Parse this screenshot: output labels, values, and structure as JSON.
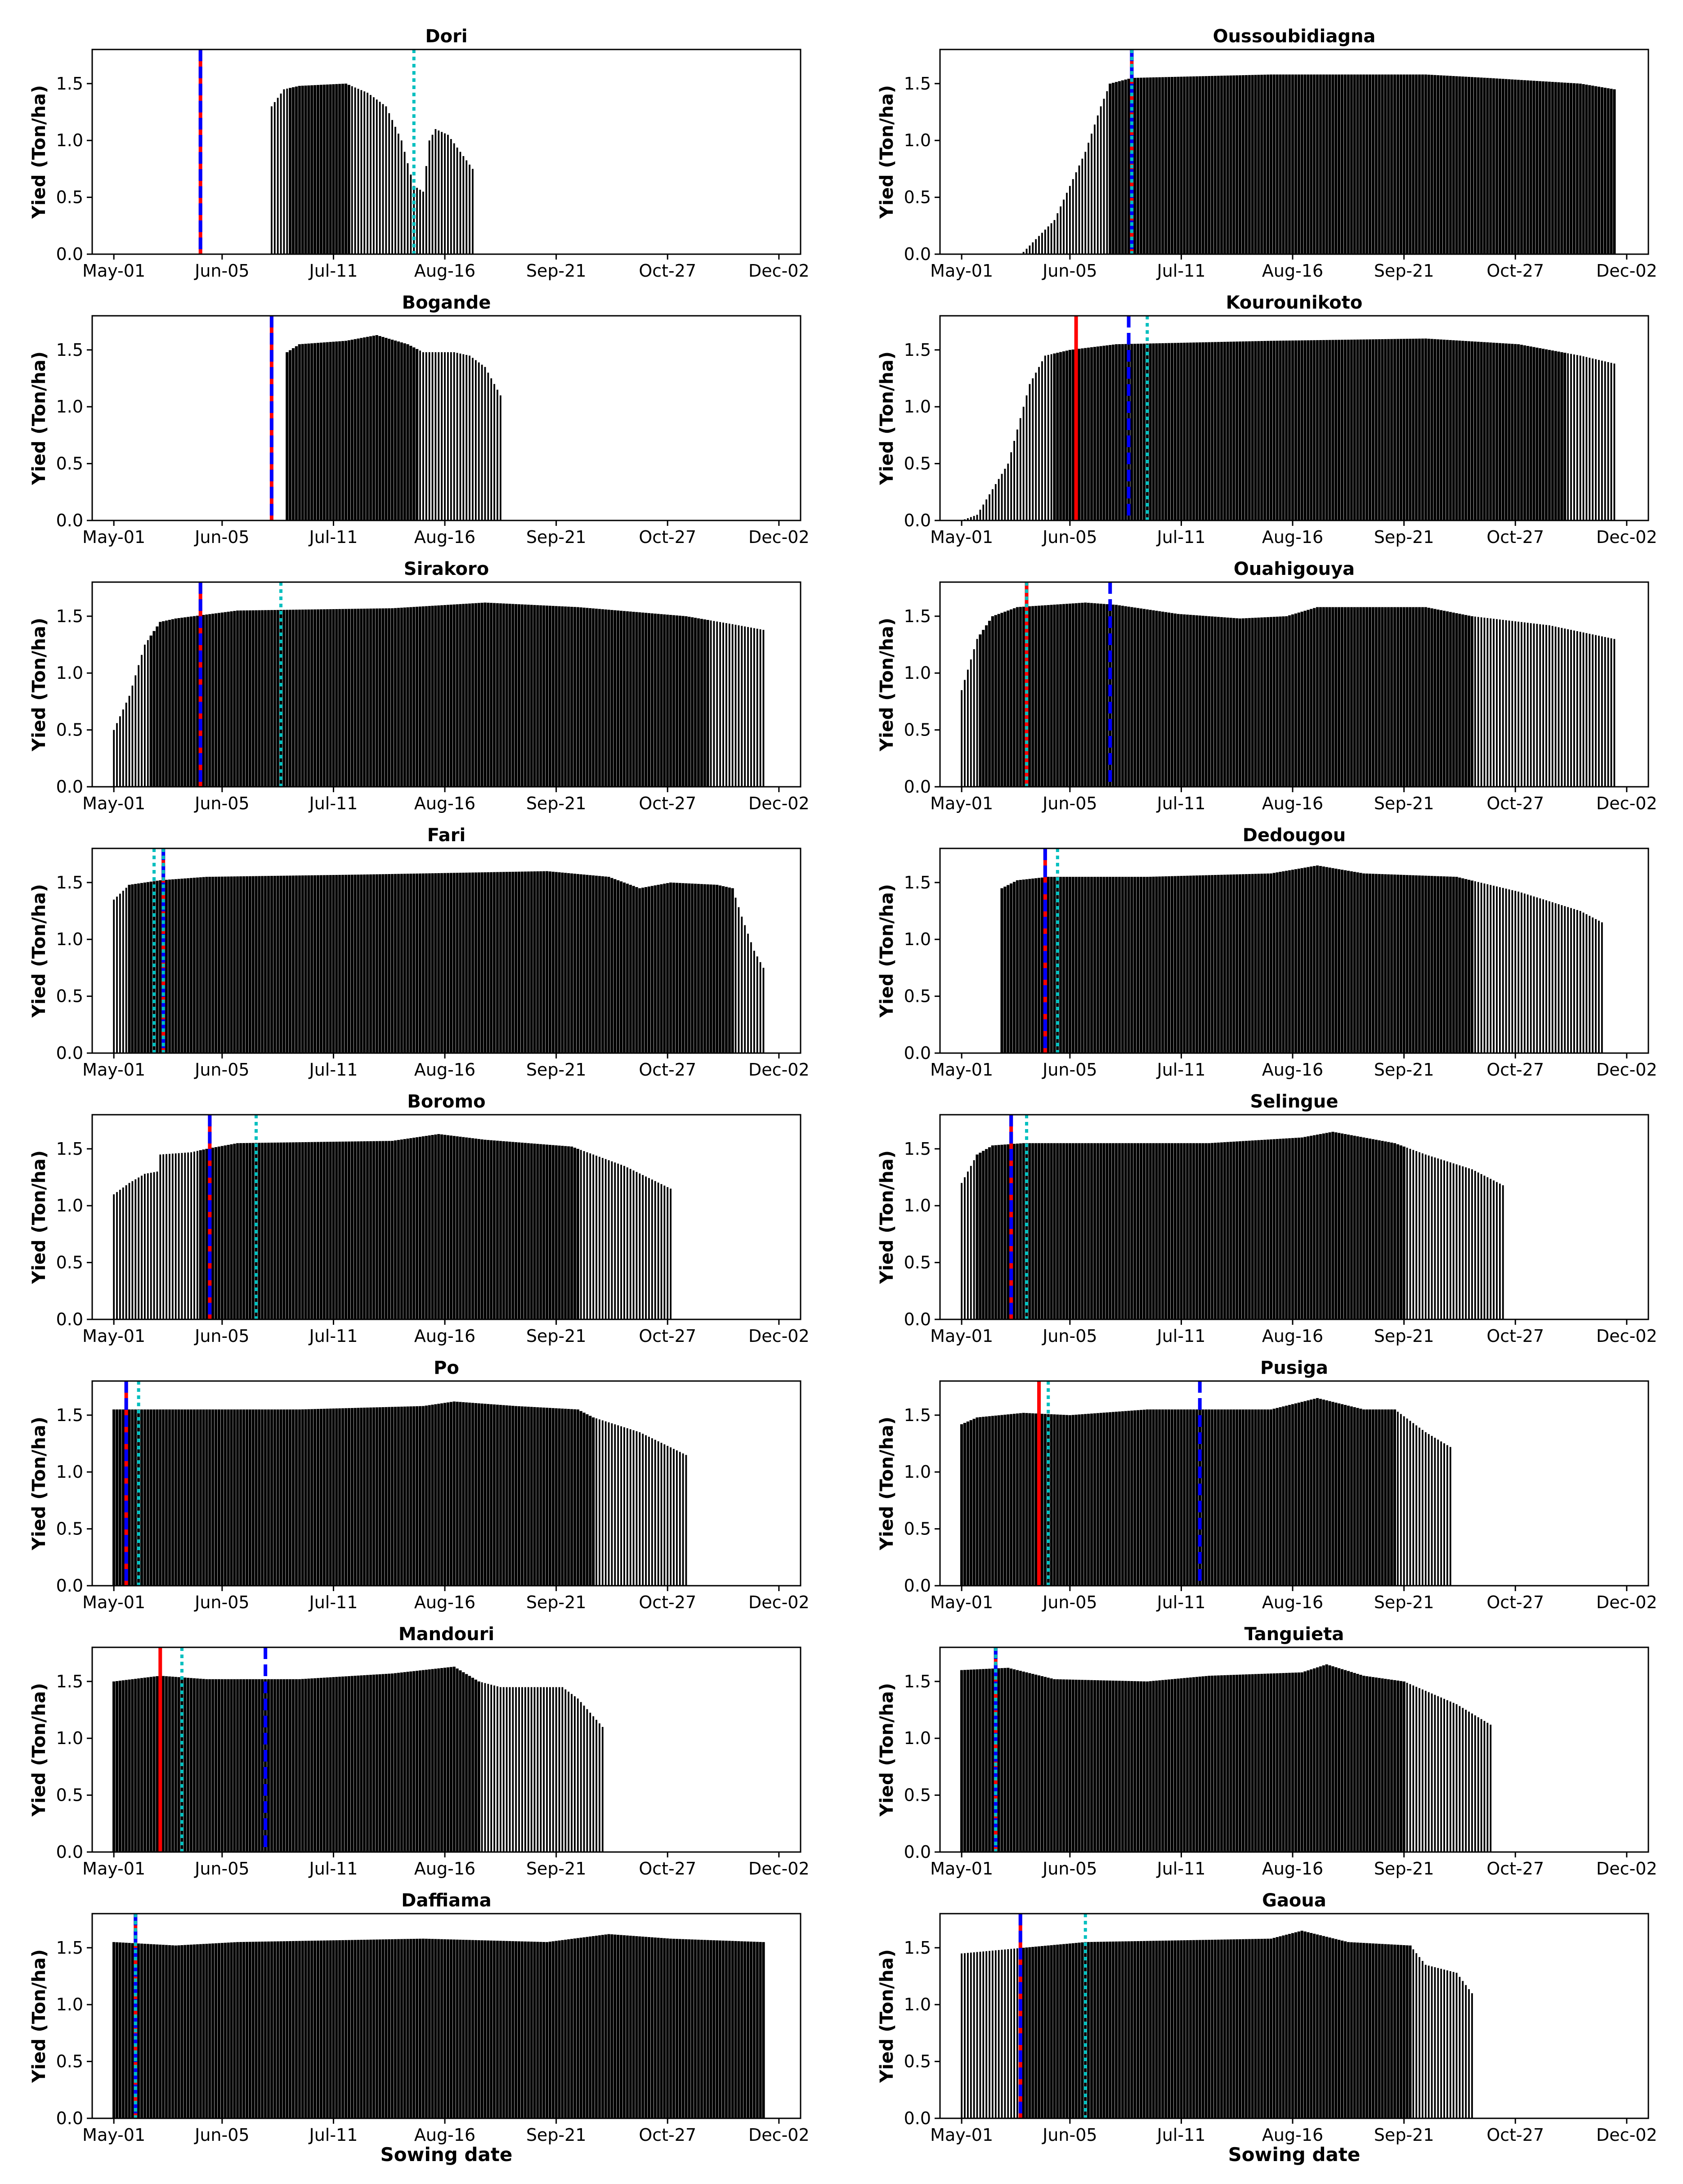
{
  "figure": {
    "xlabel": "Sowing date",
    "ylabel": "Yied (Ton/ha)",
    "x_ticks": [
      "May-01",
      "Jun-05",
      "Jul-11",
      "Aug-16",
      "Sep-21",
      "Oct-27",
      "Dec-02"
    ],
    "y_ticks": [
      "0.0",
      "0.5",
      "1.0",
      "1.5"
    ]
  },
  "colors": {
    "bar": "#000000",
    "line_red": "#ff0000",
    "line_blue": "#0000ff",
    "line_cyan": "#00bfbf"
  },
  "chart_data": [
    {
      "type": "bar",
      "title": "Dori",
      "x_start": "May-01",
      "x_end": "Dec-02",
      "ylim": [
        0,
        1.8
      ],
      "bars_from_day": 51,
      "bars_to_day": 116,
      "dark_from_day": 57,
      "dark_to_day": 76,
      "profile": [
        [
          51,
          1.3
        ],
        [
          55,
          1.45
        ],
        [
          60,
          1.48
        ],
        [
          75,
          1.5
        ],
        [
          82,
          1.42
        ],
        [
          88,
          1.3
        ],
        [
          93,
          1.0
        ],
        [
          97,
          0.6
        ],
        [
          100,
          0.55
        ],
        [
          102,
          1.0
        ],
        [
          104,
          1.1
        ],
        [
          108,
          1.05
        ],
        [
          112,
          0.9
        ],
        [
          116,
          0.75
        ]
      ],
      "lines": [
        {
          "color": "red",
          "day": 28
        },
        {
          "color": "blue_dashed",
          "day": 28
        },
        {
          "color": "cyan_dotted",
          "day": 97
        }
      ]
    },
    {
      "type": "bar",
      "title": "Oussoubidiagna",
      "x_start": "May-01",
      "x_end": "Dec-02",
      "ylim": [
        0,
        1.8
      ],
      "bars_from_day": 20,
      "bars_to_day": 211,
      "dark_from_day": 48,
      "dark_to_day": 211,
      "profile": [
        [
          20,
          0.02
        ],
        [
          30,
          0.3
        ],
        [
          40,
          0.9
        ],
        [
          45,
          1.3
        ],
        [
          48,
          1.5
        ],
        [
          55,
          1.55
        ],
        [
          100,
          1.58
        ],
        [
          150,
          1.58
        ],
        [
          170,
          1.55
        ],
        [
          200,
          1.5
        ],
        [
          211,
          1.45
        ]
      ],
      "lines": [
        {
          "color": "red",
          "day": 55
        },
        {
          "color": "blue_dashed",
          "day": 55
        },
        {
          "color": "cyan_dotted",
          "day": 55
        }
      ]
    },
    {
      "type": "bar",
      "title": "Bogande",
      "x_start": "May-01",
      "x_end": "Dec-02",
      "ylim": [
        0,
        1.8
      ],
      "bars_from_day": 56,
      "bars_to_day": 125,
      "dark_from_day": 56,
      "dark_to_day": 98,
      "profile": [
        [
          56,
          1.48
        ],
        [
          60,
          1.55
        ],
        [
          75,
          1.58
        ],
        [
          85,
          1.63
        ],
        [
          95,
          1.55
        ],
        [
          100,
          1.48
        ],
        [
          110,
          1.48
        ],
        [
          115,
          1.45
        ],
        [
          120,
          1.35
        ],
        [
          123,
          1.2
        ],
        [
          125,
          1.1
        ]
      ],
      "lines": [
        {
          "color": "red",
          "day": 51
        },
        {
          "color": "blue_dashed",
          "day": 51
        }
      ]
    },
    {
      "type": "bar",
      "title": "Kourounikoto",
      "x_start": "May-01",
      "x_end": "Dec-02",
      "ylim": [
        0,
        1.8
      ],
      "bars_from_day": 0,
      "bars_to_day": 211,
      "dark_from_day": 30,
      "dark_to_day": 195,
      "profile": [
        [
          0,
          0.0
        ],
        [
          5,
          0.05
        ],
        [
          15,
          0.5
        ],
        [
          22,
          1.2
        ],
        [
          27,
          1.45
        ],
        [
          35,
          1.5
        ],
        [
          50,
          1.55
        ],
        [
          100,
          1.58
        ],
        [
          150,
          1.6
        ],
        [
          180,
          1.55
        ],
        [
          200,
          1.45
        ],
        [
          211,
          1.38
        ]
      ],
      "lines": [
        {
          "color": "red",
          "day": 37
        },
        {
          "color": "blue_dashed",
          "day": 54
        },
        {
          "color": "cyan_dotted",
          "day": 60
        }
      ]
    },
    {
      "type": "bar",
      "title": "Sirakoro",
      "x_start": "May-01",
      "x_end": "Dec-02",
      "ylim": [
        0,
        1.8
      ],
      "bars_from_day": 0,
      "bars_to_day": 210,
      "dark_from_day": 12,
      "dark_to_day": 192,
      "profile": [
        [
          0,
          0.5
        ],
        [
          5,
          0.8
        ],
        [
          10,
          1.25
        ],
        [
          15,
          1.45
        ],
        [
          20,
          1.48
        ],
        [
          40,
          1.55
        ],
        [
          90,
          1.57
        ],
        [
          120,
          1.62
        ],
        [
          150,
          1.58
        ],
        [
          185,
          1.5
        ],
        [
          200,
          1.43
        ],
        [
          210,
          1.38
        ]
      ],
      "lines": [
        {
          "color": "red",
          "day": 28
        },
        {
          "color": "blue_dashed",
          "day": 28
        },
        {
          "color": "cyan_dotted",
          "day": 54
        }
      ]
    },
    {
      "type": "bar",
      "title": "Ouahigouya",
      "x_start": "May-01",
      "x_end": "Dec-02",
      "ylim": [
        0,
        1.8
      ],
      "bars_from_day": 0,
      "bars_to_day": 211,
      "dark_from_day": 6,
      "dark_to_day": 165,
      "profile": [
        [
          0,
          0.85
        ],
        [
          5,
          1.3
        ],
        [
          10,
          1.5
        ],
        [
          18,
          1.58
        ],
        [
          40,
          1.62
        ],
        [
          50,
          1.6
        ],
        [
          70,
          1.52
        ],
        [
          90,
          1.48
        ],
        [
          105,
          1.5
        ],
        [
          115,
          1.58
        ],
        [
          150,
          1.58
        ],
        [
          165,
          1.5
        ],
        [
          190,
          1.42
        ],
        [
          211,
          1.3
        ]
      ],
      "lines": [
        {
          "color": "red",
          "day": 21
        },
        {
          "color": "cyan_dotted",
          "day": 21
        },
        {
          "color": "blue_dashed",
          "day": 48
        }
      ]
    },
    {
      "type": "bar",
      "title": "Fari",
      "x_start": "May-01",
      "x_end": "Dec-02",
      "ylim": [
        0,
        1.8
      ],
      "bars_from_day": 0,
      "bars_to_day": 210,
      "dark_from_day": 5,
      "dark_to_day": 200,
      "profile": [
        [
          0,
          1.35
        ],
        [
          5,
          1.48
        ],
        [
          15,
          1.52
        ],
        [
          30,
          1.55
        ],
        [
          80,
          1.57
        ],
        [
          140,
          1.6
        ],
        [
          160,
          1.55
        ],
        [
          170,
          1.45
        ],
        [
          180,
          1.5
        ],
        [
          195,
          1.48
        ],
        [
          200,
          1.45
        ],
        [
          203,
          1.2
        ],
        [
          207,
          0.9
        ],
        [
          210,
          0.75
        ]
      ],
      "lines": [
        {
          "color": "cyan_dotted",
          "day": 13
        },
        {
          "color": "red",
          "day": 16
        },
        {
          "color": "blue_dashed",
          "day": 16
        },
        {
          "color": "cyan_dotted",
          "day": 16
        }
      ]
    },
    {
      "type": "bar",
      "title": "Dedougou",
      "x_start": "May-01",
      "x_end": "Dec-02",
      "ylim": [
        0,
        1.8
      ],
      "bars_from_day": 13,
      "bars_to_day": 207,
      "dark_from_day": 13,
      "dark_to_day": 165,
      "profile": [
        [
          13,
          1.45
        ],
        [
          18,
          1.52
        ],
        [
          28,
          1.55
        ],
        [
          60,
          1.55
        ],
        [
          100,
          1.58
        ],
        [
          115,
          1.65
        ],
        [
          130,
          1.58
        ],
        [
          160,
          1.55
        ],
        [
          180,
          1.42
        ],
        [
          200,
          1.25
        ],
        [
          207,
          1.15
        ]
      ],
      "lines": [
        {
          "color": "red",
          "day": 27
        },
        {
          "color": "blue_dashed",
          "day": 27
        },
        {
          "color": "cyan_dotted",
          "day": 31
        }
      ]
    },
    {
      "type": "bar",
      "title": "Boromo",
      "x_start": "May-01",
      "x_end": "Dec-02",
      "ylim": [
        0,
        1.8
      ],
      "bars_from_day": 0,
      "bars_to_day": 180,
      "dark_from_day": 28,
      "dark_to_day": 150,
      "profile": [
        [
          0,
          1.1
        ],
        [
          5,
          1.2
        ],
        [
          10,
          1.28
        ],
        [
          14,
          1.3
        ],
        [
          15,
          1.45
        ],
        [
          25,
          1.47
        ],
        [
          30,
          1.5
        ],
        [
          40,
          1.55
        ],
        [
          90,
          1.57
        ],
        [
          105,
          1.63
        ],
        [
          120,
          1.58
        ],
        [
          148,
          1.52
        ],
        [
          165,
          1.35
        ],
        [
          180,
          1.15
        ]
      ],
      "lines": [
        {
          "color": "red",
          "day": 31
        },
        {
          "color": "blue_dashed",
          "day": 31
        },
        {
          "color": "cyan_dotted",
          "day": 46
        }
      ]
    },
    {
      "type": "bar",
      "title": "Selingue",
      "x_start": "May-01",
      "x_end": "Dec-02",
      "ylim": [
        0,
        1.8
      ],
      "bars_from_day": 0,
      "bars_to_day": 175,
      "dark_from_day": 5,
      "dark_to_day": 143,
      "profile": [
        [
          0,
          1.2
        ],
        [
          5,
          1.45
        ],
        [
          10,
          1.53
        ],
        [
          20,
          1.55
        ],
        [
          80,
          1.55
        ],
        [
          110,
          1.6
        ],
        [
          120,
          1.65
        ],
        [
          140,
          1.55
        ],
        [
          150,
          1.45
        ],
        [
          165,
          1.32
        ],
        [
          175,
          1.18
        ]
      ],
      "lines": [
        {
          "color": "red",
          "day": 16
        },
        {
          "color": "blue_dashed",
          "day": 16
        },
        {
          "color": "cyan_dotted",
          "day": 21
        }
      ]
    },
    {
      "type": "bar",
      "title": "Po",
      "x_start": "May-01",
      "x_end": "Dec-02",
      "ylim": [
        0,
        1.8
      ],
      "bars_from_day": 0,
      "bars_to_day": 185,
      "dark_from_day": 0,
      "dark_to_day": 155,
      "profile": [
        [
          0,
          1.55
        ],
        [
          20,
          1.55
        ],
        [
          60,
          1.55
        ],
        [
          100,
          1.58
        ],
        [
          110,
          1.62
        ],
        [
          130,
          1.58
        ],
        [
          150,
          1.55
        ],
        [
          155,
          1.48
        ],
        [
          170,
          1.35
        ],
        [
          185,
          1.15
        ]
      ],
      "lines": [
        {
          "color": "red",
          "day": 4
        },
        {
          "color": "blue_dashed",
          "day": 4
        },
        {
          "color": "cyan_dotted",
          "day": 8
        }
      ]
    },
    {
      "type": "bar",
      "title": "Pusiga",
      "x_start": "May-01",
      "x_end": "Dec-02",
      "ylim": [
        0,
        1.8
      ],
      "bars_from_day": 0,
      "bars_to_day": 158,
      "dark_from_day": 0,
      "dark_to_day": 140,
      "profile": [
        [
          0,
          1.42
        ],
        [
          5,
          1.48
        ],
        [
          20,
          1.52
        ],
        [
          35,
          1.5
        ],
        [
          60,
          1.55
        ],
        [
          100,
          1.55
        ],
        [
          115,
          1.65
        ],
        [
          130,
          1.55
        ],
        [
          140,
          1.55
        ],
        [
          150,
          1.35
        ],
        [
          158,
          1.22
        ]
      ],
      "lines": [
        {
          "color": "red",
          "day": 25
        },
        {
          "color": "cyan_dotted",
          "day": 28
        },
        {
          "color": "blue_dashed",
          "day": 77
        }
      ]
    },
    {
      "type": "bar",
      "title": "Mandouri",
      "x_start": "May-01",
      "x_end": "Dec-02",
      "ylim": [
        0,
        1.8
      ],
      "bars_from_day": 0,
      "bars_to_day": 158,
      "dark_from_day": 0,
      "dark_to_day": 118,
      "profile": [
        [
          0,
          1.5
        ],
        [
          15,
          1.55
        ],
        [
          30,
          1.52
        ],
        [
          60,
          1.52
        ],
        [
          90,
          1.57
        ],
        [
          110,
          1.63
        ],
        [
          118,
          1.5
        ],
        [
          125,
          1.45
        ],
        [
          145,
          1.45
        ],
        [
          150,
          1.35
        ],
        [
          158,
          1.1
        ]
      ],
      "lines": [
        {
          "color": "red",
          "day": 15
        },
        {
          "color": "cyan_dotted",
          "day": 22
        },
        {
          "color": "blue_dashed",
          "day": 49
        }
      ]
    },
    {
      "type": "bar",
      "title": "Tanguieta",
      "x_start": "May-01",
      "x_end": "Dec-02",
      "ylim": [
        0,
        1.8
      ],
      "bars_from_day": 0,
      "bars_to_day": 171,
      "dark_from_day": 0,
      "dark_to_day": 143,
      "profile": [
        [
          0,
          1.6
        ],
        [
          15,
          1.62
        ],
        [
          30,
          1.52
        ],
        [
          60,
          1.5
        ],
        [
          80,
          1.55
        ],
        [
          110,
          1.58
        ],
        [
          118,
          1.65
        ],
        [
          130,
          1.55
        ],
        [
          143,
          1.5
        ],
        [
          160,
          1.3
        ],
        [
          171,
          1.12
        ]
      ],
      "lines": [
        {
          "color": "red",
          "day": 11
        },
        {
          "color": "blue_dashed",
          "day": 11
        },
        {
          "color": "cyan_dotted",
          "day": 11
        }
      ]
    },
    {
      "type": "bar",
      "title": "Daffiama",
      "x_start": "May-01",
      "x_end": "Dec-02",
      "ylim": [
        0,
        1.8
      ],
      "bars_from_day": 0,
      "bars_to_day": 210,
      "dark_from_day": 0,
      "dark_to_day": 210,
      "profile": [
        [
          0,
          1.55
        ],
        [
          20,
          1.52
        ],
        [
          40,
          1.55
        ],
        [
          100,
          1.58
        ],
        [
          140,
          1.55
        ],
        [
          160,
          1.62
        ],
        [
          180,
          1.58
        ],
        [
          210,
          1.55
        ]
      ],
      "lines": [
        {
          "color": "red",
          "day": 7
        },
        {
          "color": "blue_dashed",
          "day": 7
        },
        {
          "color": "cyan_dotted",
          "day": 7
        }
      ]
    },
    {
      "type": "bar",
      "title": "Gaoua",
      "x_start": "May-01",
      "x_end": "Dec-02",
      "ylim": [
        0,
        1.8
      ],
      "bars_from_day": 0,
      "bars_to_day": 165,
      "dark_from_day": 20,
      "dark_to_day": 145,
      "profile": [
        [
          0,
          1.45
        ],
        [
          20,
          1.5
        ],
        [
          40,
          1.55
        ],
        [
          100,
          1.58
        ],
        [
          110,
          1.65
        ],
        [
          125,
          1.55
        ],
        [
          145,
          1.52
        ],
        [
          150,
          1.35
        ],
        [
          160,
          1.28
        ],
        [
          165,
          1.1
        ]
      ],
      "lines": [
        {
          "color": "red",
          "day": 19
        },
        {
          "color": "blue_dashed",
          "day": 19
        },
        {
          "color": "cyan_dotted",
          "day": 40
        }
      ]
    }
  ]
}
